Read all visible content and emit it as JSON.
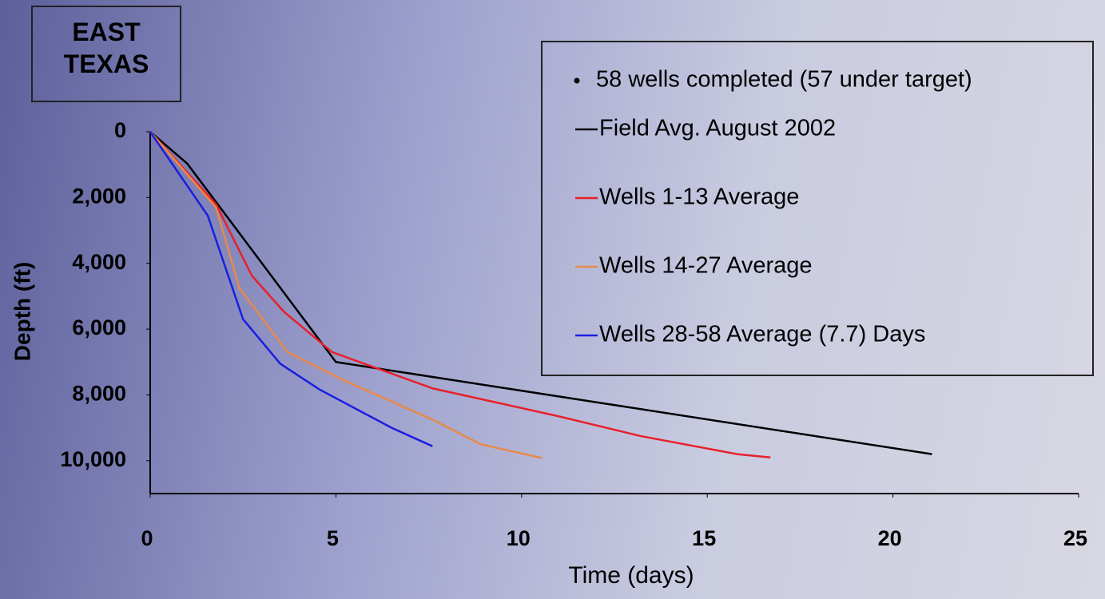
{
  "chart_data": {
    "type": "line",
    "title": "EAST TEXAS",
    "note": "58 wells completed (57 under target)",
    "x_label": "Time (days)",
    "y_label": "Depth (ft)",
    "xlim": [
      0,
      25
    ],
    "xticks": [
      0,
      5,
      10,
      15,
      20,
      25
    ],
    "ylim": [
      0,
      11000
    ],
    "y_inverted": true,
    "yticks": [
      0,
      {
        "value": 2000,
        "label": "2,000"
      },
      {
        "value": 4000,
        "label": "4,000"
      },
      {
        "value": 6000,
        "label": "6,000"
      },
      {
        "value": 8000,
        "label": "8,000"
      },
      {
        "value": 10000,
        "label": "10,000"
      }
    ],
    "grid": false,
    "series": [
      {
        "name": "Field Avg. August 2002",
        "color": "#000000",
        "x": [
          0,
          1.0,
          5,
          21.05
        ],
        "values": [
          0,
          970,
          7000,
          9800
        ]
      },
      {
        "name": "Wells 1-13 Average",
        "color": "#e8202a",
        "x": [
          0,
          1.77,
          2.74,
          3.6,
          4.9,
          7.6,
          11,
          13.2,
          15.8,
          16.7
        ],
        "values": [
          0,
          2200,
          4380,
          5470,
          6700,
          7800,
          8650,
          9250,
          9800,
          9900
        ]
      },
      {
        "name": "Wells 14-27 Average",
        "color": "#e8894a",
        "x": [
          0,
          1.77,
          2.4,
          3.7,
          5.2,
          7.6,
          8.9,
          10.55
        ],
        "values": [
          0,
          2300,
          4750,
          6700,
          7550,
          8750,
          9500,
          9920
        ]
      },
      {
        "name": "Wells 28-58 Average (7.7) Days",
        "color": "#1a1ee0",
        "x": [
          0,
          1.55,
          2.5,
          3.5,
          4.55,
          6.5,
          7.6
        ],
        "values": [
          0,
          2550,
          5700,
          7050,
          7830,
          9000,
          9560
        ]
      }
    ]
  }
}
